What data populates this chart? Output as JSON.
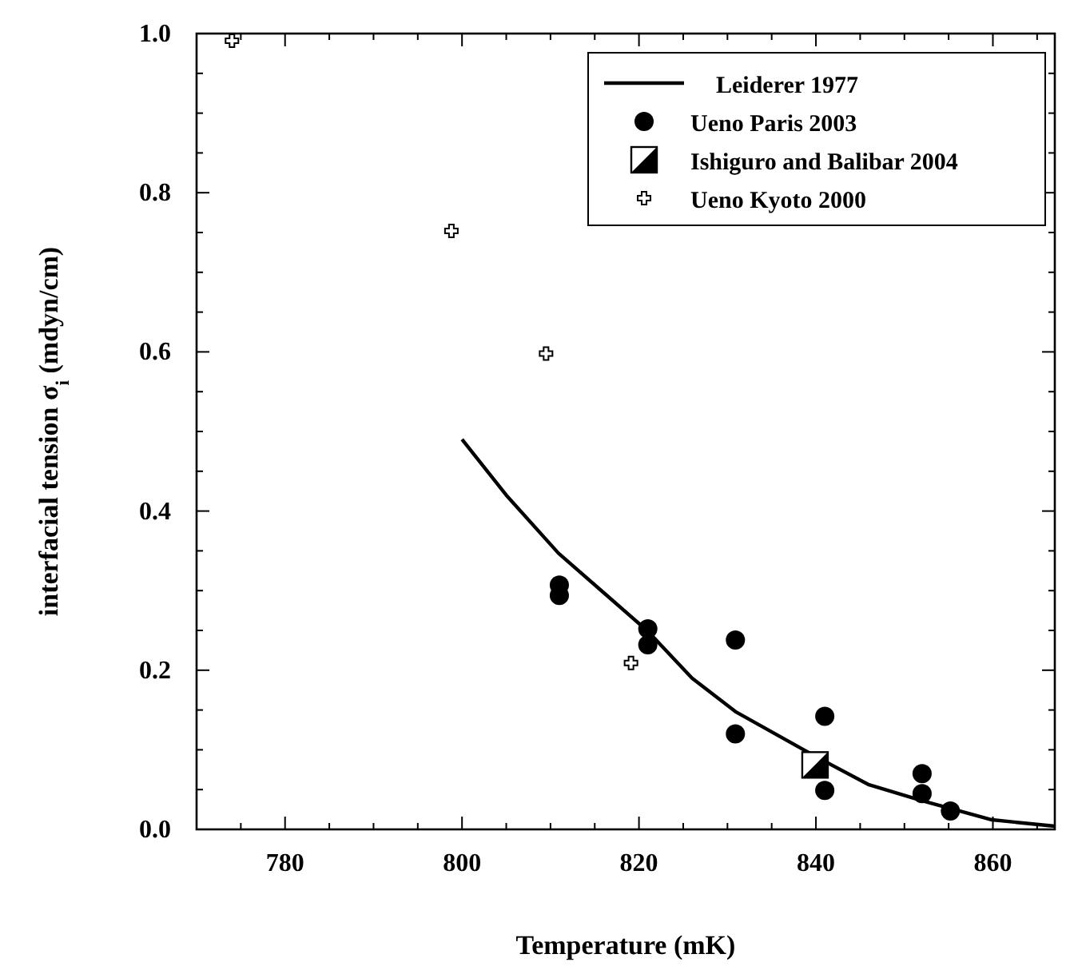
{
  "chart_data": {
    "type": "scatter",
    "xlabel": "Temperature  (mK)",
    "ylabel": "interfacial tension σ$_{i}$  (mdyn/cm)",
    "xlim": [
      770,
      867
    ],
    "ylim": [
      0,
      1
    ],
    "xticks": [
      {
        "value": 775,
        "label": null
      },
      780,
      {
        "value": 785,
        "label": null
      },
      {
        "value": 790,
        "label": null
      },
      {
        "value": 795,
        "label": null
      },
      800,
      {
        "value": 805,
        "label": null
      },
      {
        "value": 810,
        "label": null
      },
      {
        "value": 815,
        "label": null
      },
      820,
      {
        "value": 825,
        "label": null
      },
      {
        "value": 830,
        "label": null
      },
      {
        "value": 835,
        "label": null
      },
      840,
      {
        "value": 845,
        "label": null
      },
      {
        "value": 850,
        "label": null
      },
      {
        "value": 855,
        "label": null
      },
      860,
      {
        "value": 865,
        "label": null
      }
    ],
    "yticks": [
      "0.0",
      {
        "value": 0.05,
        "label": null
      },
      {
        "value": 0.1,
        "label": null
      },
      {
        "value": 0.15,
        "label": null
      },
      {
        "value": 0.2,
        "label": "0.2"
      },
      {
        "value": 0.25,
        "label": null
      },
      {
        "value": 0.3,
        "label": null
      },
      {
        "value": 0.35,
        "label": null
      },
      {
        "value": 0.4,
        "label": "0.4"
      },
      {
        "value": 0.45,
        "label": null
      },
      {
        "value": 0.5,
        "label": null
      },
      {
        "value": 0.55,
        "label": null
      },
      {
        "value": 0.6,
        "label": "0.6"
      },
      {
        "value": 0.65,
        "label": null
      },
      {
        "value": 0.7,
        "label": null
      },
      {
        "value": 0.75,
        "label": null
      },
      {
        "value": 0.8,
        "label": "0.8"
      },
      {
        "value": 0.85,
        "label": null
      },
      {
        "value": 0.9,
        "label": null
      },
      {
        "value": 0.95,
        "label": null
      },
      {
        "value": 1,
        "label": "1.0"
      }
    ],
    "grid": false,
    "legend": "top right",
    "series": [
      {
        "name": "Leiderer  1977",
        "type": "line",
        "marker": "none",
        "line_style": "solid",
        "color": "#000000",
        "x": [
          800,
          805,
          810.9,
          821,
          826,
          830.9,
          839.9,
          846,
          852,
          859.9,
          867
        ],
        "values": [
          0.49,
          0.42,
          0.347,
          0.249,
          0.19,
          0.148,
          0.092,
          0.056,
          0.036,
          0.012,
          0.004
        ]
      },
      {
        "name": "Ueno  Paris 2003",
        "marker": "circle",
        "color": "#000000",
        "x": [
          811,
          811,
          821,
          821,
          830.9,
          830.9,
          841,
          841,
          852,
          852,
          855.2
        ],
        "values": [
          0.307,
          0.294,
          0.252,
          0.232,
          0.238,
          0.12,
          0.142,
          0.049,
          0.07,
          0.045,
          0.023
        ]
      },
      {
        "name": "Ishiguro and Balibar 2004",
        "marker": "square",
        "color": "#000000",
        "x": [
          839.9
        ],
        "values": [
          0.081
        ]
      },
      {
        "name": "Ueno Kyoto 2000",
        "marker": "cross",
        "color": "#000000",
        "x": [
          774,
          798.8,
          809.5,
          819.1
        ],
        "values": [
          0.991,
          0.752,
          0.598,
          0.209
        ]
      }
    ]
  }
}
